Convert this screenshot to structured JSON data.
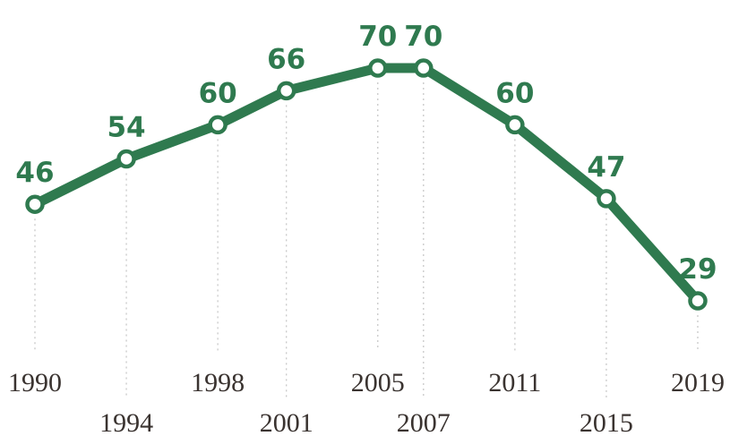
{
  "chart_data": {
    "type": "line",
    "title": "",
    "xlabel": "",
    "ylabel": "",
    "x": [
      "1990",
      "1994",
      "1998",
      "2001",
      "2005",
      "2007",
      "2011",
      "2015",
      "2019"
    ],
    "series": [
      {
        "values": [
          46,
          54,
          60,
          66,
          70,
          70,
          60,
          47,
          29
        ]
      }
    ],
    "ylim": [
      20,
      75
    ],
    "grid": "dotted vertical guides",
    "legend": "none",
    "line_color": "#2f7a4f",
    "label_color": "#2f7a4f",
    "tick_color": "#3a3330",
    "grid_color": "#c8c8c8"
  }
}
